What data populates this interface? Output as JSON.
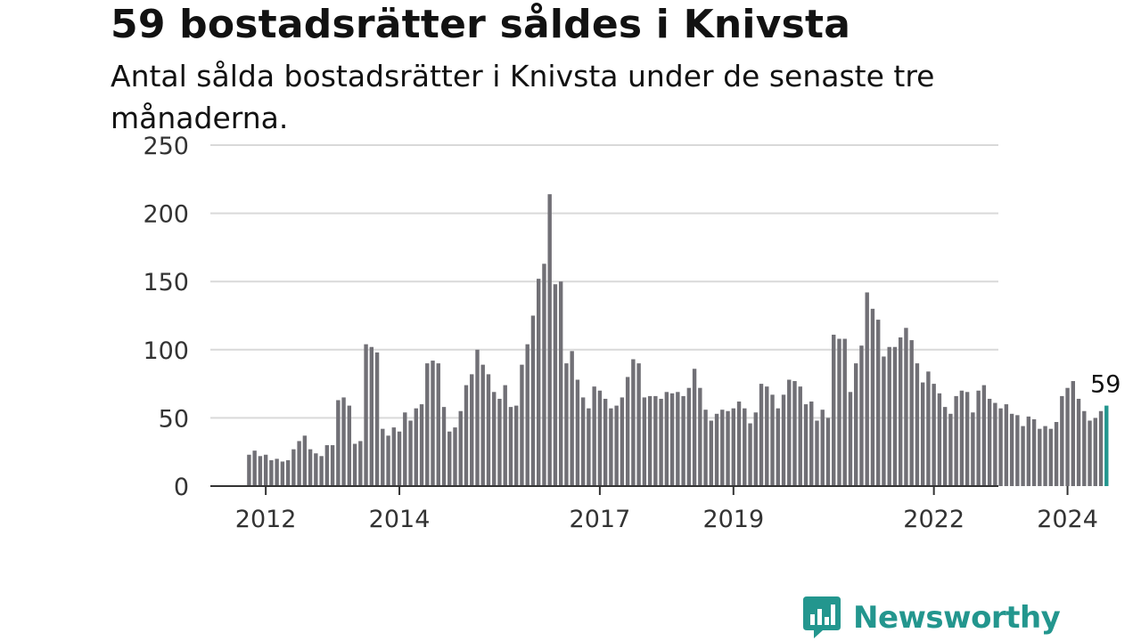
{
  "title": "59 bostadsrätter såldes i Knivsta",
  "subtitle": "Antal sålda bostadsrätter i Knivsta under de senaste tre månaderna.",
  "brand": {
    "name": "Newsworthy",
    "icon": "newsworthy-logo-icon",
    "color": "#23968e"
  },
  "chart_data": {
    "type": "bar",
    "title": "59 bostadsrätter såldes i Knivsta",
    "subtitle": "Antal sålda bostadsrätter i Knivsta under de senaste tre månaderna.",
    "x_start": "2011-10",
    "x_end": "2024-08",
    "frequency": "monthly",
    "values": [
      23,
      26,
      22,
      23,
      19,
      20,
      18,
      19,
      27,
      33,
      37,
      27,
      24,
      22,
      30,
      30,
      63,
      65,
      59,
      31,
      33,
      104,
      102,
      98,
      42,
      37,
      43,
      40,
      54,
      48,
      57,
      60,
      90,
      92,
      90,
      58,
      40,
      43,
      55,
      74,
      82,
      100,
      89,
      82,
      69,
      64,
      74,
      58,
      59,
      89,
      104,
      125,
      152,
      163,
      214,
      148,
      150,
      90,
      99,
      78,
      65,
      57,
      73,
      70,
      64,
      57,
      59,
      65,
      80,
      93,
      90,
      65,
      66,
      66,
      64,
      69,
      68,
      69,
      66,
      72,
      86,
      72,
      56,
      48,
      53,
      56,
      55,
      57,
      62,
      57,
      46,
      54,
      75,
      73,
      67,
      57,
      67,
      78,
      77,
      73,
      60,
      62,
      48,
      56,
      50,
      111,
      108,
      108,
      69,
      90,
      103,
      142,
      130,
      122,
      95,
      102,
      102,
      109,
      116,
      107,
      90,
      76,
      84,
      75,
      68,
      58,
      53,
      66,
      70,
      69,
      54,
      70,
      74,
      64,
      61,
      57,
      60,
      53,
      52,
      44,
      51,
      49,
      42,
      44,
      42,
      47,
      66,
      72,
      77,
      64,
      55,
      48,
      50,
      55,
      59
    ],
    "x_ticks": [
      "2012",
      "2014",
      "2017",
      "2019",
      "2022",
      "2024"
    ],
    "ylim": [
      0,
      250
    ],
    "y_ticks": [
      0,
      50,
      100,
      150,
      200,
      250
    ],
    "highlight": {
      "index": -1,
      "label": "59",
      "color": "#23968e"
    },
    "bar_color": "#717076",
    "grid": true,
    "legend": "none",
    "xlabel": "",
    "ylabel": ""
  }
}
